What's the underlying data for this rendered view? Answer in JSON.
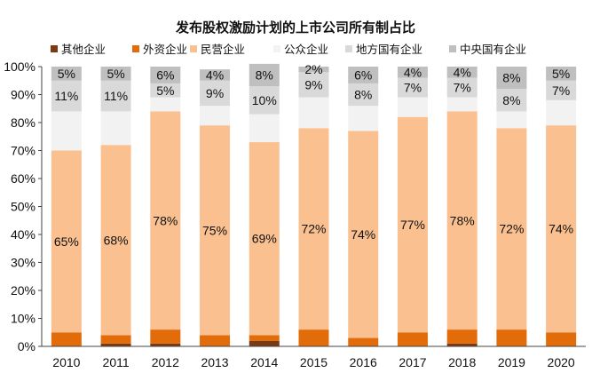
{
  "chart_data": {
    "type": "bar",
    "stacked": true,
    "title": "发布股权激励计划的上市公司所有制占比",
    "xlabel": "",
    "ylabel": "",
    "ylim": [
      0,
      100
    ],
    "grid": false,
    "legend_position": "top",
    "categories": [
      "2010",
      "2011",
      "2012",
      "2013",
      "2014",
      "2015",
      "2016",
      "2017",
      "2018",
      "2019",
      "2020"
    ],
    "y_ticks": [
      "0%",
      "10%",
      "20%",
      "30%",
      "40%",
      "50%",
      "60%",
      "70%",
      "80%",
      "90%",
      "100%"
    ],
    "series": [
      {
        "name": "其他企业",
        "color": "#7b3a12",
        "values": [
          0,
          1,
          1,
          0,
          2,
          0,
          0,
          0,
          1,
          0,
          0
        ]
      },
      {
        "name": "外资企业",
        "color": "#e36c0a",
        "values": [
          5,
          3,
          5,
          4,
          2,
          6,
          3,
          5,
          5,
          6,
          5
        ]
      },
      {
        "name": "民营企业",
        "color": "#fac090",
        "values": [
          65,
          68,
          78,
          75,
          69,
          72,
          74,
          77,
          78,
          72,
          74
        ]
      },
      {
        "name": "公众企业",
        "color": "#f2f2f2",
        "values": [
          14,
          12,
          5,
          7,
          10,
          11,
          9,
          7,
          5,
          6,
          9
        ]
      },
      {
        "name": "地方国有企业",
        "color": "#d9d9d9",
        "values": [
          11,
          11,
          5,
          9,
          10,
          9,
          8,
          7,
          7,
          8,
          7
        ]
      },
      {
        "name": "中央国有企业",
        "color": "#bfbfbf",
        "values": [
          5,
          5,
          6,
          4,
          8,
          2,
          6,
          4,
          4,
          8,
          5
        ]
      }
    ],
    "data_labels": {
      "民营企业": [
        "65%",
        "68%",
        "78%",
        "75%",
        "69%",
        "72%",
        "74%",
        "77%",
        "78%",
        "72%",
        "74%"
      ],
      "地方国有企业": [
        "11%",
        "11%",
        "5%",
        "9%",
        "10%",
        "9%",
        "8%",
        "7%",
        "7%",
        "8%",
        "7%"
      ],
      "中央国有企业": [
        "5%",
        "5%",
        "6%",
        "4%",
        "8%",
        "2%",
        "6%",
        "4%",
        "4%",
        "8%",
        "5%"
      ]
    }
  }
}
